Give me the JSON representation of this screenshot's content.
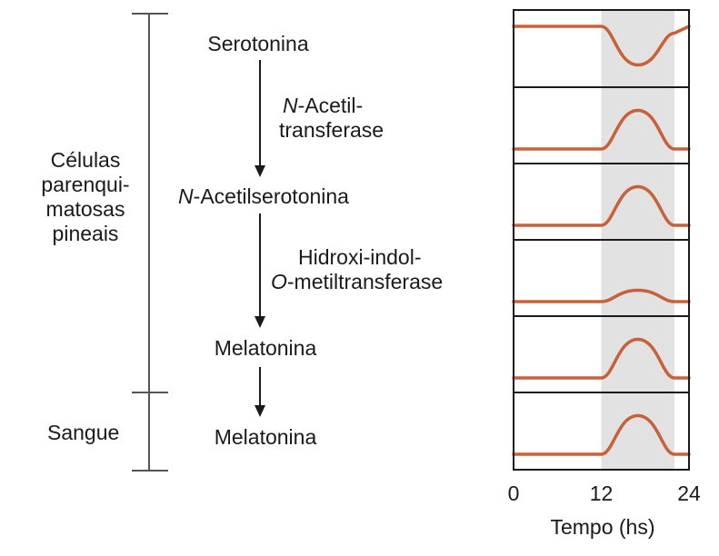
{
  "compartments": {
    "cells": [
      "Células",
      "parenqui-",
      "matosas",
      "pineais"
    ],
    "blood": "Sangue"
  },
  "pathway": {
    "substrate": "Serotonina",
    "enzyme1": {
      "prefix": "N",
      "line1_rest": "-Acetil-",
      "line2": "transferase"
    },
    "intermediate": {
      "prefix": "N",
      "rest": "-Acetilserotonina"
    },
    "enzyme2": {
      "line1": "Hidroxi-indol-",
      "line2_prefix": "O",
      "line2_rest": "-metiltransferase"
    },
    "product_pineal": "Melatonina",
    "product_blood": "Melatonina"
  },
  "colors": {
    "curve": "#c8603a",
    "night_shading": "#e2e2e2",
    "frame": "#1a1a1a",
    "bracket": "#555555"
  },
  "chart_data": {
    "type": "line",
    "xlabel": "Tempo (hs)",
    "xlim": [
      0,
      24
    ],
    "xticks": [
      0,
      12,
      24
    ],
    "tick_labels": [
      "0",
      "12",
      "24"
    ],
    "shaded_x": [
      12,
      22
    ],
    "panels": [
      {
        "row": 1,
        "points": [
          [
            0,
            1.0
          ],
          [
            12,
            1.0
          ],
          [
            17,
            0.15
          ],
          [
            22,
            0.85
          ],
          [
            24,
            1.0
          ]
        ]
      },
      {
        "row": 2,
        "points": [
          [
            0,
            0.0
          ],
          [
            12,
            0.0
          ],
          [
            17,
            0.85
          ],
          [
            22,
            0.0
          ],
          [
            24,
            0.0
          ]
        ]
      },
      {
        "row": 3,
        "points": [
          [
            0,
            0.0
          ],
          [
            12,
            0.0
          ],
          [
            17,
            0.85
          ],
          [
            22,
            0.0
          ],
          [
            24,
            0.0
          ]
        ]
      },
      {
        "row": 4,
        "points": [
          [
            0,
            0.0
          ],
          [
            12,
            0.0
          ],
          [
            17,
            0.25
          ],
          [
            22,
            0.0
          ],
          [
            24,
            0.0
          ]
        ]
      },
      {
        "row": 5,
        "points": [
          [
            0,
            0.0
          ],
          [
            12,
            0.0
          ],
          [
            17,
            0.85
          ],
          [
            22,
            0.0
          ],
          [
            24,
            0.0
          ]
        ]
      },
      {
        "row": 6,
        "points": [
          [
            0,
            0.0
          ],
          [
            12,
            0.0
          ],
          [
            17,
            0.85
          ],
          [
            22,
            0.0
          ],
          [
            24,
            0.0
          ]
        ]
      }
    ]
  }
}
